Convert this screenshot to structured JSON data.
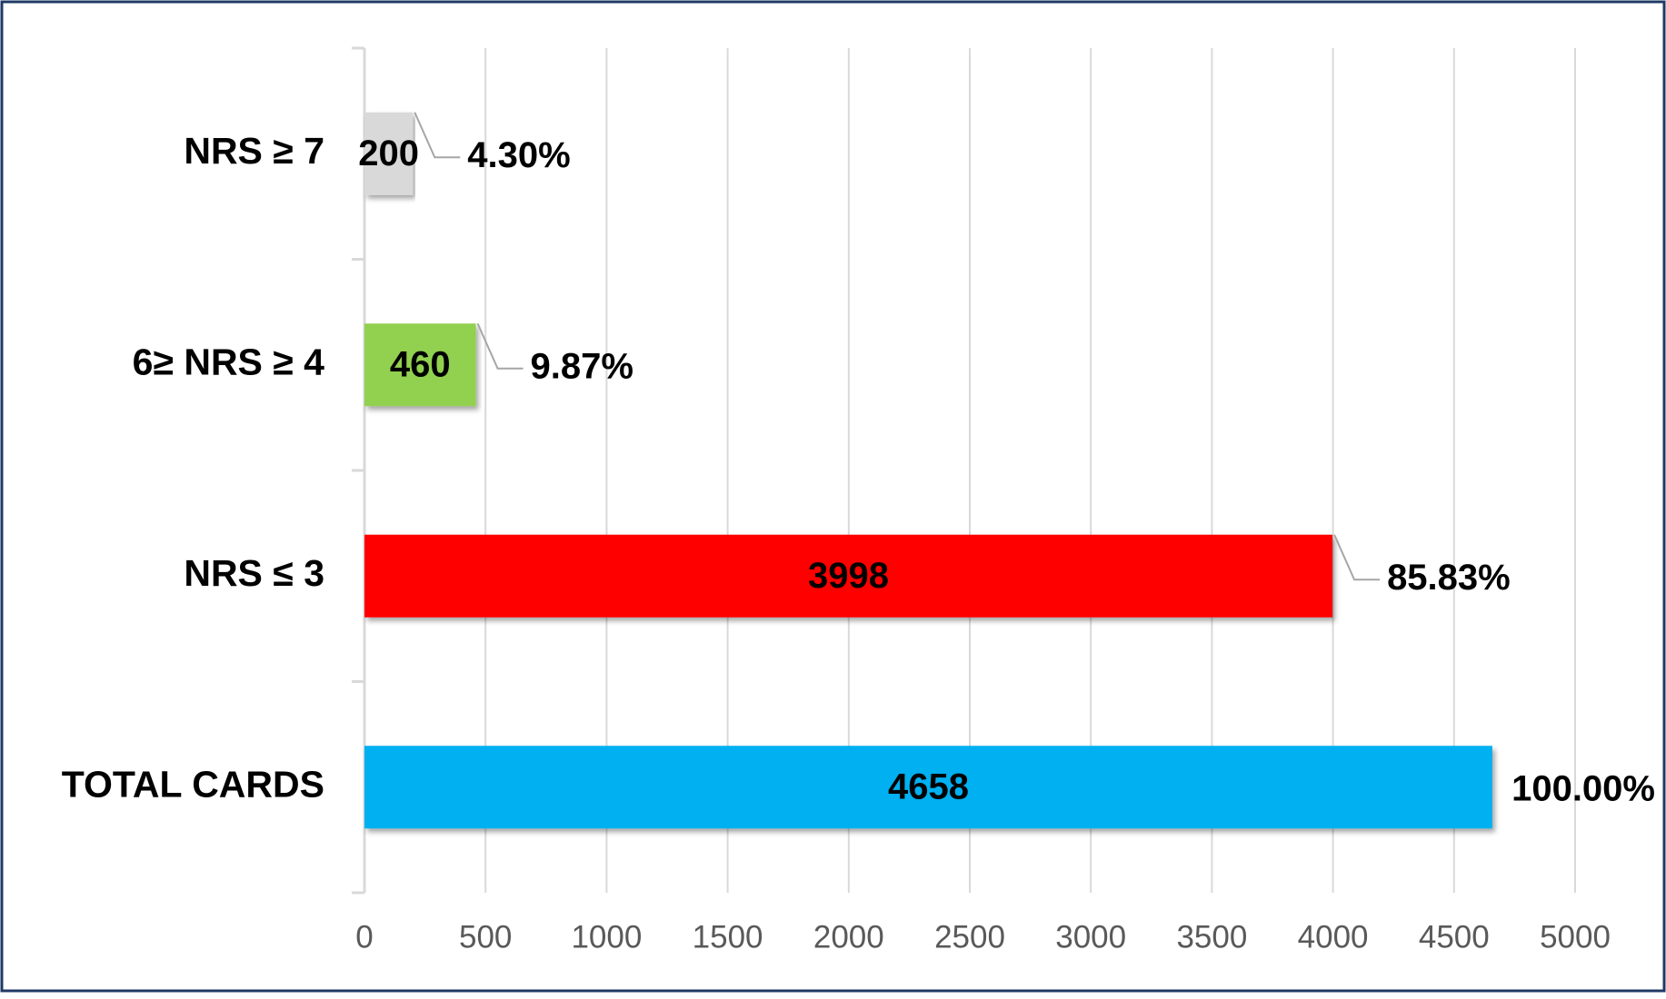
{
  "chart_data": {
    "type": "hbar",
    "categories": [
      "NRS ≥ 7",
      "6≥ NRS ≥ 4",
      "NRS ≤ 3",
      "TOTAL CARDS"
    ],
    "values": [
      200,
      460,
      3998,
      4658
    ],
    "percentages": [
      {
        "value": 4.3,
        "label": "4.30%"
      },
      {
        "value": 9.87,
        "label": "9.87%"
      },
      {
        "value": 85.83,
        "label": "85.83%"
      },
      {
        "value": 100,
        "label": "100.00%"
      }
    ],
    "colors": [
      "#d9d9d9",
      "#92d050",
      "#ff0000",
      "#00b0f0"
    ],
    "xlim": [
      0,
      5000
    ],
    "xticks": [
      0,
      500,
      1000,
      1500,
      2000,
      2500,
      3000,
      3500,
      4000,
      4500,
      5000
    ],
    "grid": true
  }
}
